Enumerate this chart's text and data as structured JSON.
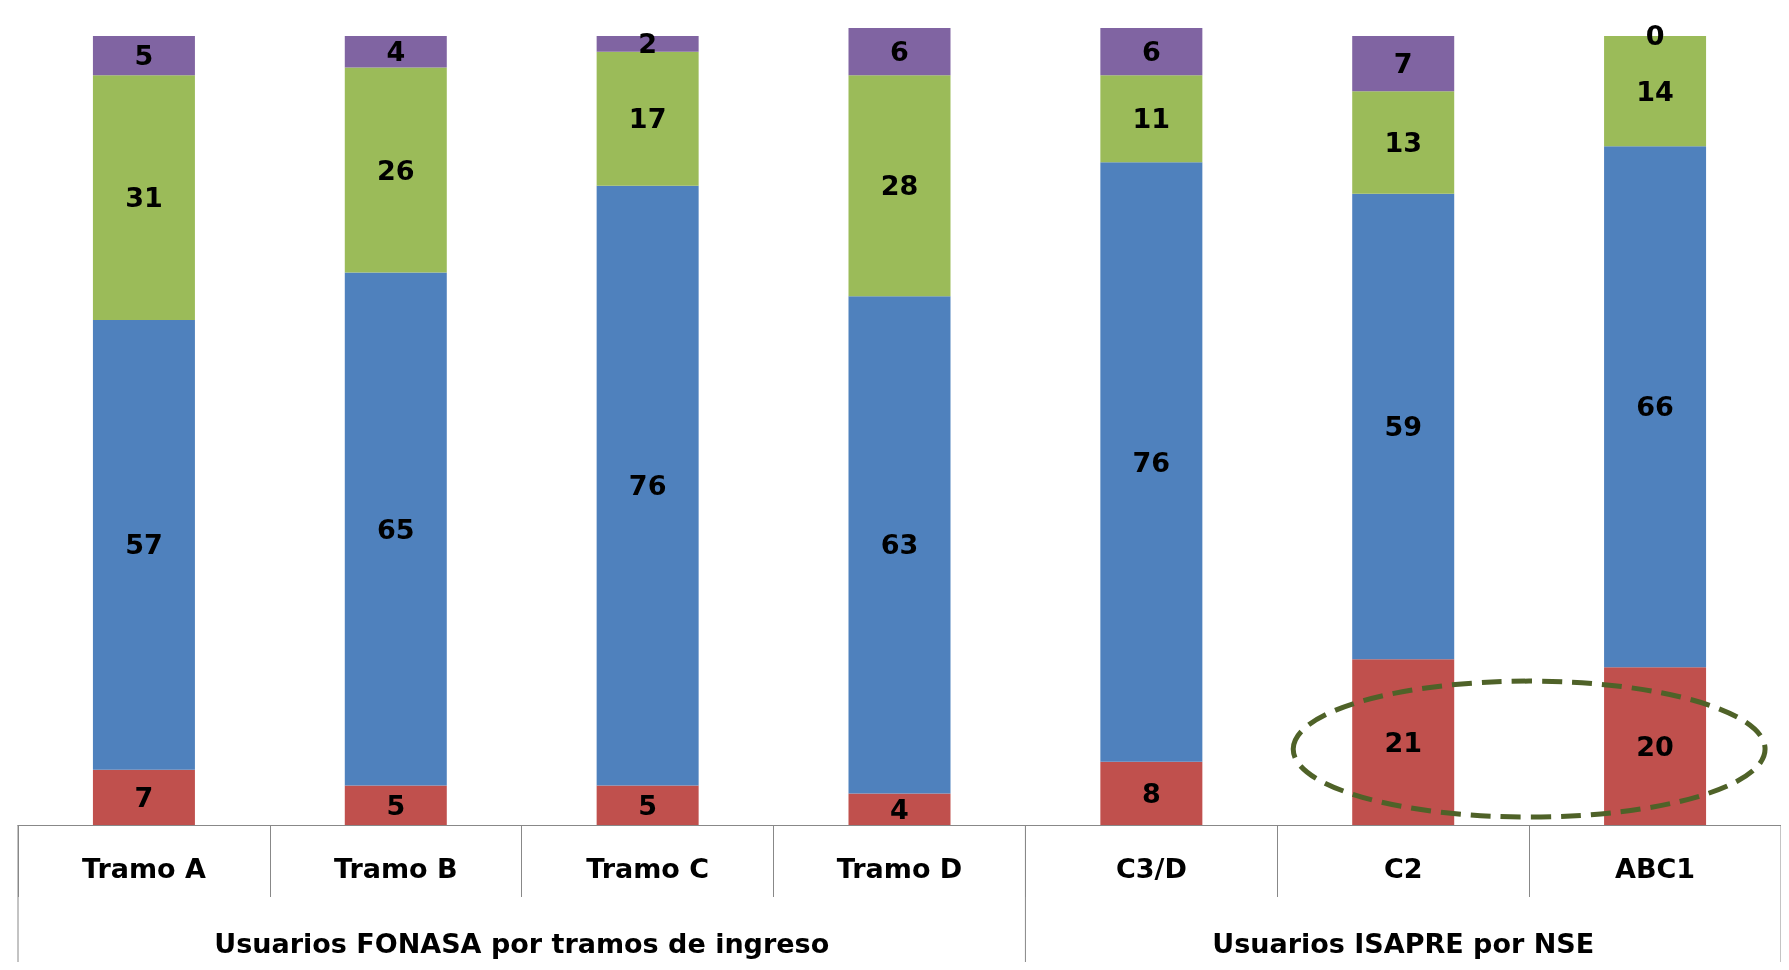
{
  "chart_data": {
    "type": "bar",
    "stacked": true,
    "data_labels": true,
    "categories": [
      "Tramo A",
      "Tramo B",
      "Tramo C",
      "Tramo D",
      "C3/D",
      "C2",
      "ABC1"
    ],
    "series": [
      {
        "color": "#c0504d",
        "values": [
          7,
          5,
          5,
          4,
          8,
          21,
          20
        ]
      },
      {
        "color": "#4f81bd",
        "values": [
          57,
          65,
          76,
          63,
          76,
          59,
          66
        ]
      },
      {
        "color": "#9bbb59",
        "values": [
          31,
          26,
          17,
          28,
          11,
          13,
          14
        ]
      },
      {
        "color": "#8064a2",
        "values": [
          5,
          4,
          2,
          6,
          6,
          7,
          0
        ]
      }
    ],
    "annotations": [
      "Usuarios FONASA por tramos de ingreso",
      "Usuarios ISAPRE por NSE"
    ]
  }
}
